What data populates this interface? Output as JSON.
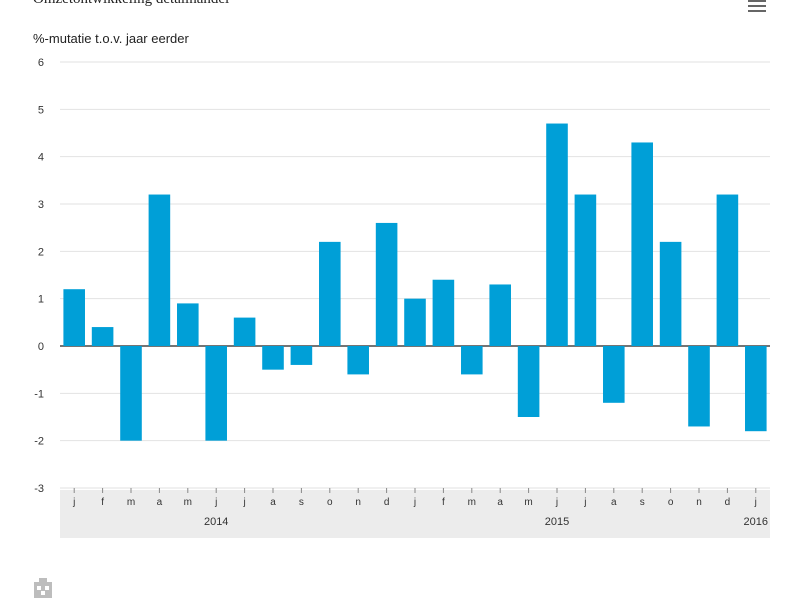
{
  "chart_data": {
    "type": "bar",
    "title": "Omzetontwikkeling detailhandel",
    "ylabel": "%-mutatie t.o.v. jaar eerder",
    "ylim": [
      -3,
      6
    ],
    "yticks": [
      6,
      5,
      4,
      3,
      2,
      1,
      0,
      -1,
      -2,
      -3
    ],
    "categories": [
      "j",
      "f",
      "m",
      "a",
      "m",
      "j",
      "j",
      "a",
      "s",
      "o",
      "n",
      "d",
      "j",
      "f",
      "m",
      "a",
      "m",
      "j",
      "j",
      "a",
      "s",
      "o",
      "n",
      "d",
      "j"
    ],
    "values": [
      1.2,
      0.4,
      -2.0,
      3.2,
      0.9,
      -2.0,
      0.6,
      -0.5,
      -0.4,
      2.2,
      -0.6,
      2.6,
      1.0,
      1.4,
      -0.6,
      1.3,
      -1.5,
      4.7,
      3.2,
      -1.2,
      4.3,
      2.2,
      -1.7,
      3.2,
      -1.8
    ],
    "years": [
      {
        "label": "2014",
        "category_index": 5
      },
      {
        "label": "2015",
        "category_index": 17
      },
      {
        "label": "2016",
        "category_index": 24
      }
    ],
    "grid": true,
    "bar_color": "#009fd7"
  },
  "icons": {
    "menu": "hamburger-menu-icon",
    "logo": "cbs-logo-icon"
  }
}
